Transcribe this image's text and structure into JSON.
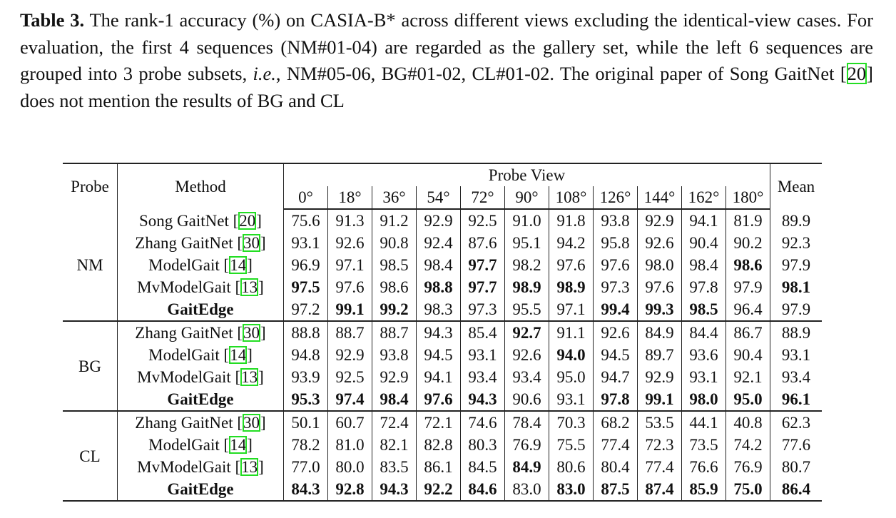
{
  "caption": {
    "label": "Table 3.",
    "parts": [
      "The rank-1 accuracy (%) on CASIA-B* across different views excluding the identical-view cases. For evaluation, the first 4 sequences (NM#01-04) are regarded as the gallery set, while the left 6 sequences are grouped into 3 probe subsets, ",
      "i.e.",
      ", NM#05-06, BG#01-02, CL#01-02. The original paper of Song GaitNet [",
      "20",
      "] does not mention the results of BG and CL"
    ]
  },
  "table": {
    "header": {
      "probe": "Probe",
      "method": "Method",
      "view": "Probe View",
      "mean": "Mean",
      "views": [
        "0°",
        "18°",
        "36°",
        "54°",
        "72°",
        "90°",
        "108°",
        "126°",
        "144°",
        "162°",
        "180°"
      ]
    },
    "groups": [
      {
        "probe": "NM",
        "rows": [
          {
            "method": "Song GaitNet",
            "cite": "20",
            "values": [
              "75.6",
              "91.3",
              "91.2",
              "92.9",
              "92.5",
              "91.0",
              "91.8",
              "93.8",
              "92.9",
              "94.1",
              "81.9",
              "89.9"
            ],
            "bold": []
          },
          {
            "method": "Zhang GaitNet",
            "cite": "30",
            "values": [
              "93.1",
              "92.6",
              "90.8",
              "92.4",
              "87.6",
              "95.1",
              "94.2",
              "95.8",
              "92.6",
              "90.4",
              "90.2",
              "92.3"
            ],
            "bold": []
          },
          {
            "method": "ModelGait",
            "cite": "14",
            "values": [
              "96.9",
              "97.1",
              "98.5",
              "98.4",
              "97.7",
              "98.2",
              "97.6",
              "97.6",
              "98.0",
              "98.4",
              "98.6",
              "97.9"
            ],
            "bold": [
              4,
              10
            ]
          },
          {
            "method": "MvModelGait",
            "cite": "13",
            "values": [
              "97.5",
              "97.6",
              "98.6",
              "98.8",
              "97.7",
              "98.9",
              "98.9",
              "97.3",
              "97.6",
              "97.8",
              "97.9",
              "98.1"
            ],
            "bold": [
              0,
              3,
              4,
              5,
              6,
              11
            ]
          },
          {
            "method": "GaitEdge",
            "method_bold": true,
            "values": [
              "97.2",
              "99.1",
              "99.2",
              "98.3",
              "97.3",
              "95.5",
              "97.1",
              "99.4",
              "99.3",
              "98.5",
              "96.4",
              "97.9"
            ],
            "bold": [
              1,
              2,
              7,
              8,
              9
            ]
          }
        ]
      },
      {
        "probe": "BG",
        "rows": [
          {
            "method": "Zhang GaitNet",
            "cite": "30",
            "values": [
              "88.8",
              "88.7",
              "88.7",
              "94.3",
              "85.4",
              "92.7",
              "91.1",
              "92.6",
              "84.9",
              "84.4",
              "86.7",
              "88.9"
            ],
            "bold": [
              5
            ]
          },
          {
            "method": "ModelGait",
            "cite": "14",
            "values": [
              "94.8",
              "92.9",
              "93.8",
              "94.5",
              "93.1",
              "92.6",
              "94.0",
              "94.5",
              "89.7",
              "93.6",
              "90.4",
              "93.1"
            ],
            "bold": [
              6
            ]
          },
          {
            "method": "MvModelGait",
            "cite": "13",
            "values": [
              "93.9",
              "92.5",
              "92.9",
              "94.1",
              "93.4",
              "93.4",
              "95.0",
              "94.7",
              "92.9",
              "93.1",
              "92.1",
              "93.4"
            ],
            "bold": []
          },
          {
            "method": "GaitEdge",
            "method_bold": true,
            "values": [
              "95.3",
              "97.4",
              "98.4",
              "97.6",
              "94.3",
              "90.6",
              "93.1",
              "97.8",
              "99.1",
              "98.0",
              "95.0",
              "96.1"
            ],
            "bold": [
              0,
              1,
              2,
              3,
              4,
              7,
              8,
              9,
              10,
              11
            ]
          }
        ]
      },
      {
        "probe": "CL",
        "rows": [
          {
            "method": "Zhang GaitNet",
            "cite": "30",
            "values": [
              "50.1",
              "60.7",
              "72.4",
              "72.1",
              "74.6",
              "78.4",
              "70.3",
              "68.2",
              "53.5",
              "44.1",
              "40.8",
              "62.3"
            ],
            "bold": []
          },
          {
            "method": "ModelGait",
            "cite": "14",
            "values": [
              "78.2",
              "81.0",
              "82.1",
              "82.8",
              "80.3",
              "76.9",
              "75.5",
              "77.4",
              "72.3",
              "73.5",
              "74.2",
              "77.6"
            ],
            "bold": []
          },
          {
            "method": "MvModelGait",
            "cite": "13",
            "values": [
              "77.0",
              "80.0",
              "83.5",
              "86.1",
              "84.5",
              "84.9",
              "80.6",
              "80.4",
              "77.4",
              "76.6",
              "76.9",
              "80.7"
            ],
            "bold": [
              5
            ]
          },
          {
            "method": "GaitEdge",
            "method_bold": true,
            "values": [
              "84.3",
              "92.8",
              "94.3",
              "92.2",
              "84.6",
              "83.0",
              "83.0",
              "87.5",
              "87.4",
              "85.9",
              "75.0",
              "86.4"
            ],
            "bold": [
              0,
              1,
              2,
              3,
              4,
              6,
              7,
              8,
              9,
              10,
              11
            ]
          }
        ]
      }
    ]
  }
}
